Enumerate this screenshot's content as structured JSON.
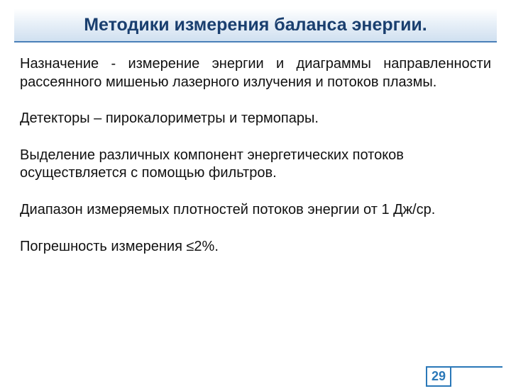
{
  "title": "Методики измерения баланса энергии.",
  "paragraphs": {
    "purpose": "Назначение - измерение энергии и диаграммы направленности рассеянного мишенью лазерного излучения и потоков плазмы.",
    "detectors": "Детекторы – пирокалориметры и термопары.",
    "filters": "Выделение различных компонент энергетических потоков осуществляется с помощью фильтров.",
    "range": "Диапазон измеряемых плотностей потоков энергии от 1 Дж/ср.",
    "error": "Погрешность измерения ≤2%."
  },
  "page_number": "29",
  "colors": {
    "title_text": "#1a3f6f",
    "title_underline": "#4a7fb8",
    "body_text": "#111111",
    "frame_blue": "#2a78b8",
    "background": "#ffffff"
  },
  "fontsize": {
    "title": 25,
    "body": 20,
    "pagenum": 18
  }
}
